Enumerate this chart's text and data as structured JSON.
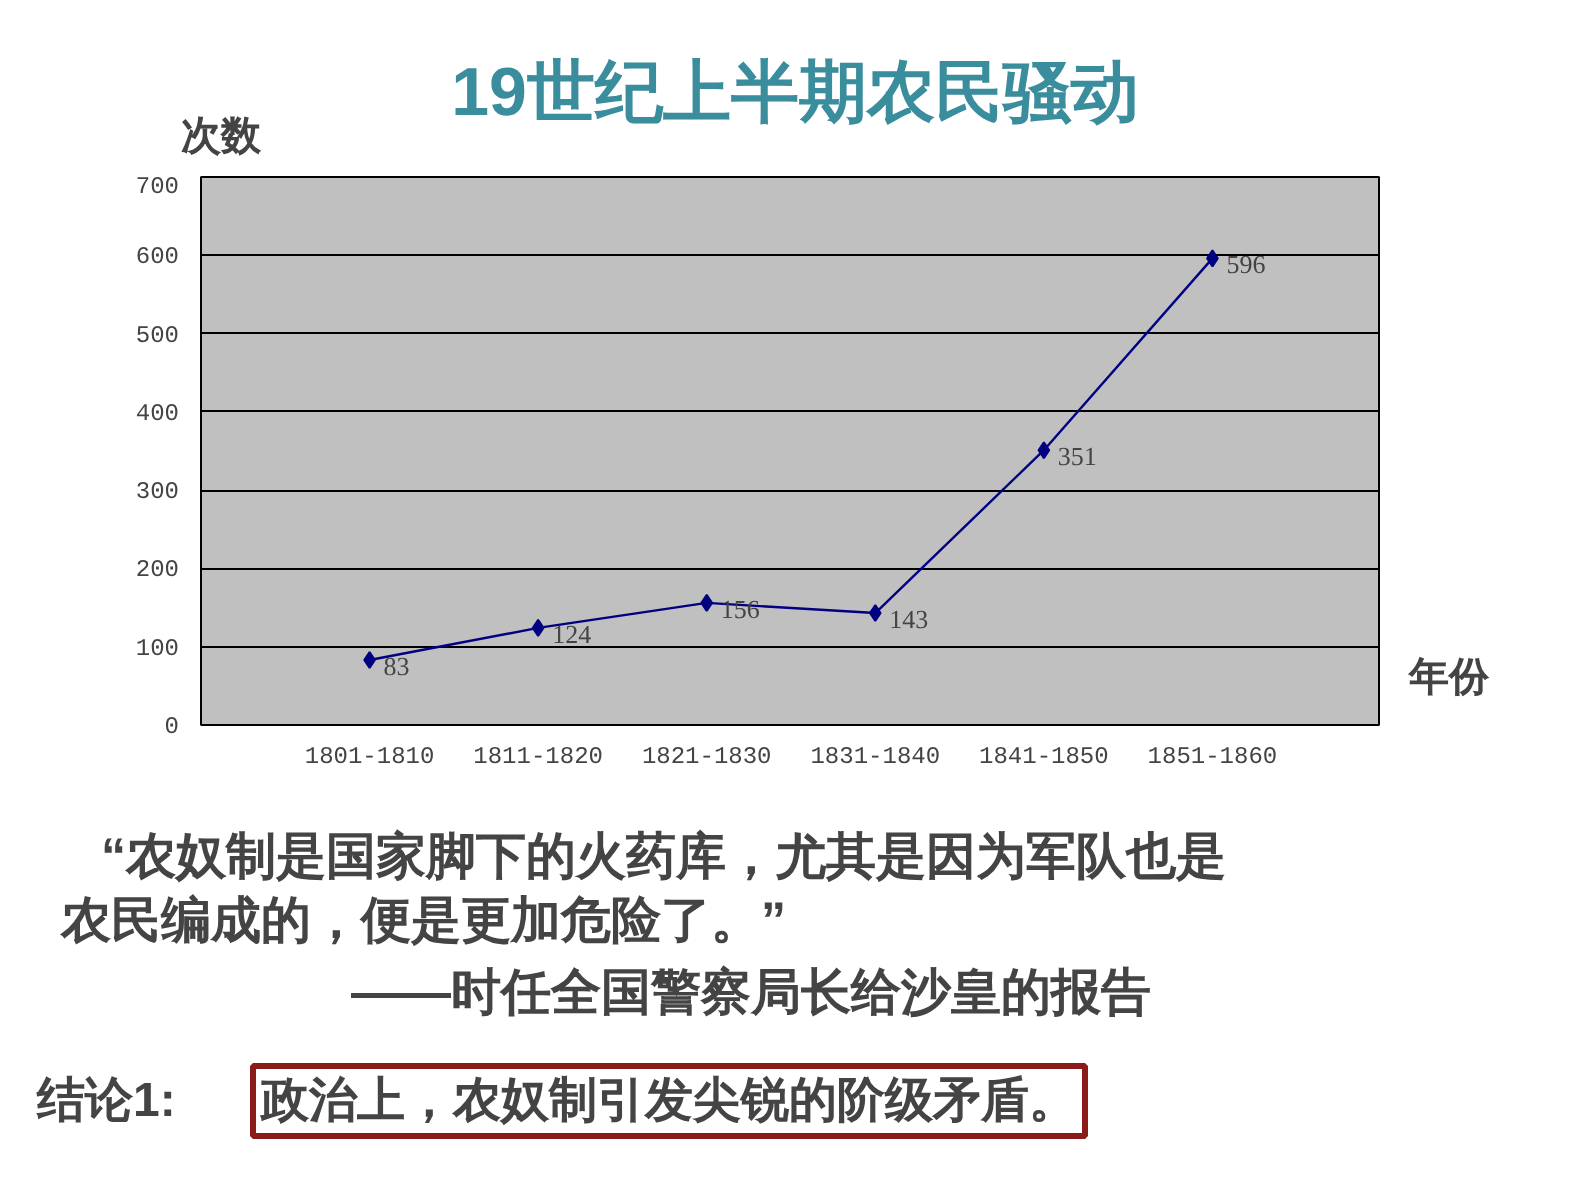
{
  "chart_data": {
    "type": "line",
    "title": "19世纪上半期农民骚动",
    "ylabel": "次数",
    "xlabel": "年份",
    "categories": [
      "1801-1810",
      "1811-1820",
      "1821-1830",
      "1831-1840",
      "1841-1850",
      "1851-1860"
    ],
    "series": [
      {
        "color": "#000080",
        "values": [
          83,
          124,
          156,
          143,
          351,
          596
        ]
      }
    ],
    "ylim": [
      0,
      700
    ],
    "yticks": [
      0,
      100,
      200,
      300,
      400,
      500,
      600,
      700
    ],
    "grid": "y",
    "marker": "diamond",
    "data_labels": true,
    "annotations": [
      "“农奴制是国家脚下的火药库，尤其是因为军队也是农民编成的，便是更加危险了。”",
      "——时任全国警察局长给沙皇的报告",
      "结论1:",
      "政治上，农奴制引发尖锐的阶级矛盾。"
    ]
  }
}
